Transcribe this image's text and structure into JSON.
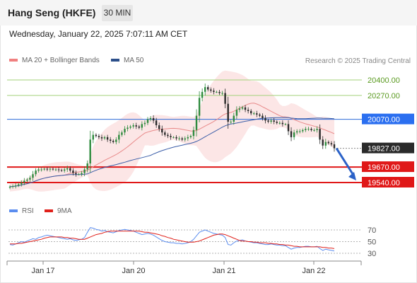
{
  "header": {
    "title": "Hang Seng (HKFE)",
    "timeframe": "30 MIN",
    "datetime": "Wednesday, January 22, 2025 7:07:11 AM CET"
  },
  "legend": {
    "ma20": {
      "label": "MA 20 + Bollinger Bands",
      "color": "#f08080"
    },
    "ma50": {
      "label": "MA 50",
      "color": "#2c4f8a"
    },
    "rsi": {
      "label": "RSI",
      "color": "#5b8def"
    },
    "ma9": {
      "label": "9MA",
      "color": "#e0201a"
    }
  },
  "copyright": "Research © 2025 Trading Central",
  "x_labels": [
    "Jan 17",
    "Jan 20",
    "Jan 21",
    "Jan 22"
  ],
  "chart_data": [
    {
      "type": "candlestick",
      "ylim": [
        19350,
        20500
      ],
      "levels": [
        {
          "value": 20400,
          "label": "20400.00",
          "kind": "resistance"
        },
        {
          "value": 20270,
          "label": "20270.00",
          "kind": "resistance"
        },
        {
          "value": 20070,
          "label": "20070.00",
          "kind": "pivot"
        },
        {
          "value": 19827,
          "label": "19827.00",
          "kind": "last"
        },
        {
          "value": 19670,
          "label": "19670.00",
          "kind": "support"
        },
        {
          "value": 19540,
          "label": "19540.00",
          "kind": "support"
        }
      ],
      "forecast": {
        "from": 19827,
        "to": 19540
      },
      "close": [
        19505,
        19510,
        19515,
        19525,
        19540,
        19555,
        19565,
        19580,
        19610,
        19640,
        19650,
        19650,
        19655,
        19650,
        19655,
        19650,
        19650,
        19645,
        19640,
        19650,
        19660,
        19640,
        19620,
        19610,
        19610,
        19620,
        19650,
        19700,
        19900,
        19940,
        19930,
        19920,
        19910,
        19920,
        19900,
        19890,
        19880,
        19900,
        19940,
        19960,
        19990,
        20000,
        20010,
        20020,
        20010,
        20000,
        20030,
        20040,
        20070,
        20080,
        20060,
        20020,
        19990,
        19960,
        19940,
        19930,
        19920,
        19920,
        19910,
        19910,
        19900,
        19910,
        19920,
        19930,
        19980,
        20100,
        20250,
        20300,
        20340,
        20320,
        20310,
        20300,
        20300,
        20290,
        20290,
        20200,
        20050,
        20050,
        20100,
        20150,
        20160,
        20170,
        20150,
        20140,
        20120,
        20120,
        20110,
        20100,
        20080,
        20060,
        20050,
        20060,
        20050,
        20040,
        20040,
        20030,
        20030,
        19970,
        19920,
        19960,
        19970,
        19970,
        19980,
        19990,
        19990,
        19980,
        19980,
        19990,
        19900,
        19850,
        19880,
        19870,
        19860,
        19827
      ]
    },
    {
      "type": "line",
      "ylim": [
        20,
        80
      ],
      "ticks": [
        30,
        50,
        70
      ],
      "series": [
        {
          "name": "RSI",
          "values": [
            45,
            44,
            46,
            48,
            50,
            49,
            51,
            53,
            55,
            54,
            57,
            58,
            60,
            61,
            60,
            59,
            58,
            57,
            56,
            55,
            54,
            55,
            53,
            52,
            53,
            54,
            57,
            66,
            74,
            73,
            71,
            70,
            68,
            69,
            67,
            66,
            65,
            67,
            69,
            70,
            71,
            70,
            69,
            68,
            66,
            64,
            62,
            63,
            64,
            63,
            61,
            58,
            55,
            52,
            50,
            49,
            48,
            48,
            47,
            47,
            46,
            47,
            48,
            50,
            54,
            60,
            66,
            68,
            70,
            68,
            66,
            64,
            63,
            62,
            61,
            57,
            45,
            44,
            48,
            51,
            52,
            53,
            51,
            50,
            49,
            48,
            48,
            47,
            46,
            45,
            45,
            46,
            45,
            44,
            44,
            43,
            43,
            40,
            37,
            39,
            40,
            40,
            41,
            42,
            42,
            41,
            41,
            42,
            38,
            35,
            37,
            36,
            35,
            34
          ]
        },
        {
          "name": "9MA",
          "values": [
            46,
            46,
            46,
            47,
            47,
            48,
            49,
            50,
            51,
            52,
            53,
            54,
            56,
            57,
            58,
            58,
            58,
            58,
            58,
            57,
            57,
            56,
            56,
            55,
            54,
            54,
            54,
            56,
            58,
            60,
            62,
            63,
            64,
            66,
            67,
            68,
            68,
            68,
            68,
            68,
            68,
            68,
            68,
            68,
            68,
            68,
            67,
            66,
            66,
            65,
            64,
            63,
            62,
            60,
            59,
            57,
            56,
            54,
            53,
            52,
            51,
            50,
            49,
            49,
            49,
            50,
            51,
            53,
            55,
            57,
            59,
            61,
            62,
            63,
            63,
            62,
            60,
            58,
            56,
            54,
            52,
            51,
            51,
            50,
            50,
            49,
            49,
            48,
            48,
            48,
            47,
            47,
            46,
            46,
            45,
            45,
            44,
            44,
            43,
            42,
            42,
            41,
            41,
            41,
            41,
            41,
            41,
            41,
            41,
            40,
            40,
            39,
            39,
            38
          ]
        }
      ]
    }
  ]
}
